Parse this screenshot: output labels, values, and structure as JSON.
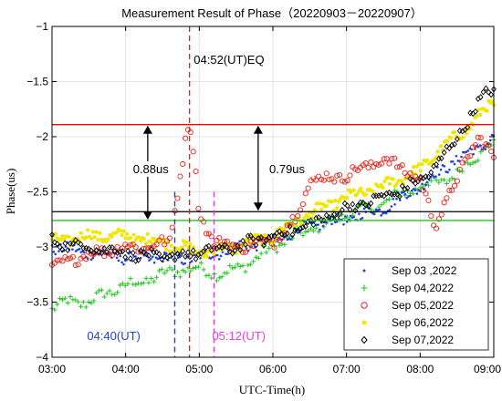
{
  "chart_data": {
    "type": "scatter",
    "title": "Measurement Result of Phase（20220903－20220907）",
    "xlabel": "UTC-Time(h)",
    "ylabel": "Phase(us)",
    "xlim": [
      3,
      9
    ],
    "ylim": [
      -4,
      -1
    ],
    "x_ticks": [
      3,
      4,
      5,
      6,
      7,
      8,
      9
    ],
    "x_tick_labels": [
      "03:00",
      "04:00",
      "05:00",
      "06:00",
      "07:00",
      "08:00",
      "09:00"
    ],
    "y_ticks": [
      -1,
      -1.5,
      -2,
      -2.5,
      -3,
      -3.5,
      -4
    ],
    "y_tick_labels": [
      "−1",
      "−1.5",
      "−2",
      "−2.5",
      "−3",
      "−3.5",
      "−4"
    ],
    "legend_position": "bottom-right",
    "series": [
      {
        "name": "Sep 03 ,2022",
        "color": "#1f3fe0",
        "marker": "dot",
        "x": [
          3.0,
          3.5,
          4.0,
          4.5,
          4.8,
          5.0,
          5.5,
          6.0,
          6.5,
          7.0,
          7.5,
          8.0,
          8.3,
          8.5,
          8.8,
          9.0
        ],
        "y": [
          -3.0,
          -3.05,
          -3.1,
          -3.1,
          -3.1,
          -3.1,
          -3.0,
          -2.95,
          -2.8,
          -2.75,
          -2.65,
          -2.45,
          -2.3,
          -2.2,
          -2.1,
          -2.0
        ]
      },
      {
        "name": "Sep 04,2022",
        "color": "#22c81e",
        "marker": "plus",
        "x": [
          3.0,
          3.2,
          3.5,
          3.8,
          4.0,
          4.3,
          4.5,
          4.8,
          5.0,
          5.3,
          5.5,
          5.8,
          6.0,
          6.5,
          7.0,
          7.3,
          7.5,
          7.8,
          8.0,
          8.3,
          8.5,
          8.7,
          9.0
        ],
        "y": [
          -3.55,
          -3.5,
          -3.5,
          -3.4,
          -3.35,
          -3.3,
          -3.25,
          -3.2,
          -3.2,
          -3.25,
          -3.2,
          -3.1,
          -3.0,
          -2.85,
          -2.7,
          -2.65,
          -2.6,
          -2.5,
          -2.45,
          -2.4,
          -2.35,
          -2.2,
          -2.05
        ]
      },
      {
        "name": "Sep 05,2022",
        "color": "#e8231a",
        "marker": "circle",
        "x": [
          3.0,
          3.3,
          3.6,
          4.0,
          4.3,
          4.6,
          4.75,
          4.85,
          4.9,
          5.0,
          5.2,
          5.5,
          6.0,
          6.3,
          6.5,
          7.0,
          7.5,
          7.8,
          8.0,
          8.2,
          8.3,
          8.5,
          8.7,
          8.8,
          9.0
        ],
        "y": [
          -3.2,
          -3.1,
          -3.05,
          -3.0,
          -3.0,
          -2.95,
          -2.3,
          -1.9,
          -2.0,
          -2.7,
          -2.95,
          -3.0,
          -2.95,
          -2.75,
          -2.4,
          -2.35,
          -2.2,
          -2.3,
          -2.4,
          -2.8,
          -2.65,
          -2.4,
          -2.1,
          -2.0,
          -2.2
        ]
      },
      {
        "name": "Sep 06,2022",
        "color": "#f0e600",
        "marker": "dot",
        "x": [
          3.0,
          3.5,
          4.0,
          4.5,
          5.0,
          5.5,
          6.0,
          6.5,
          7.0,
          7.5,
          8.0,
          8.3,
          8.6,
          8.8,
          9.0
        ],
        "y": [
          -2.95,
          -2.9,
          -2.9,
          -2.95,
          -3.05,
          -3.0,
          -2.9,
          -2.7,
          -2.55,
          -2.45,
          -2.3,
          -2.1,
          -1.95,
          -1.8,
          -1.7
        ]
      },
      {
        "name": "Sep 07,2022",
        "color": "#000000",
        "marker": "diamond",
        "x": [
          3.0,
          3.5,
          4.0,
          4.5,
          5.0,
          5.5,
          6.0,
          6.5,
          7.0,
          7.5,
          8.0,
          8.3,
          8.5,
          8.7,
          8.9,
          9.0
        ],
        "y": [
          -2.95,
          -3.0,
          -3.05,
          -3.1,
          -3.05,
          -3.0,
          -2.9,
          -2.8,
          -2.65,
          -2.55,
          -2.4,
          -2.2,
          -2.0,
          -1.8,
          -1.6,
          -1.55
        ]
      }
    ],
    "horizontal_lines": [
      {
        "y": -1.89,
        "color": "#ff0000"
      },
      {
        "y": -2.68,
        "color": "#000000"
      },
      {
        "y": -2.76,
        "color": "#22c81e"
      }
    ],
    "vertical_lines": [
      {
        "x": 4.867,
        "color": "#e8231a",
        "style": "dashed"
      },
      {
        "x": 4.667,
        "color": "#1f3fe0",
        "style": "dashed"
      },
      {
        "x": 5.2,
        "color": "#e040e0",
        "style": "dashed"
      }
    ],
    "annotations": [
      {
        "text": "04:52(UT)EQ",
        "color": "#000000"
      },
      {
        "text": "0.88us",
        "color": "#000000"
      },
      {
        "text": "0.79us",
        "color": "#000000"
      },
      {
        "text": "04:40(UT)",
        "color": "#1f3fe0"
      },
      {
        "text": "05:12(UT)",
        "color": "#e040e0"
      }
    ],
    "arrows": [
      {
        "x": 4.3,
        "y_from": -1.89,
        "y_to": -2.76
      },
      {
        "x": 5.8,
        "y_from": -1.89,
        "y_to": -2.68
      }
    ]
  }
}
